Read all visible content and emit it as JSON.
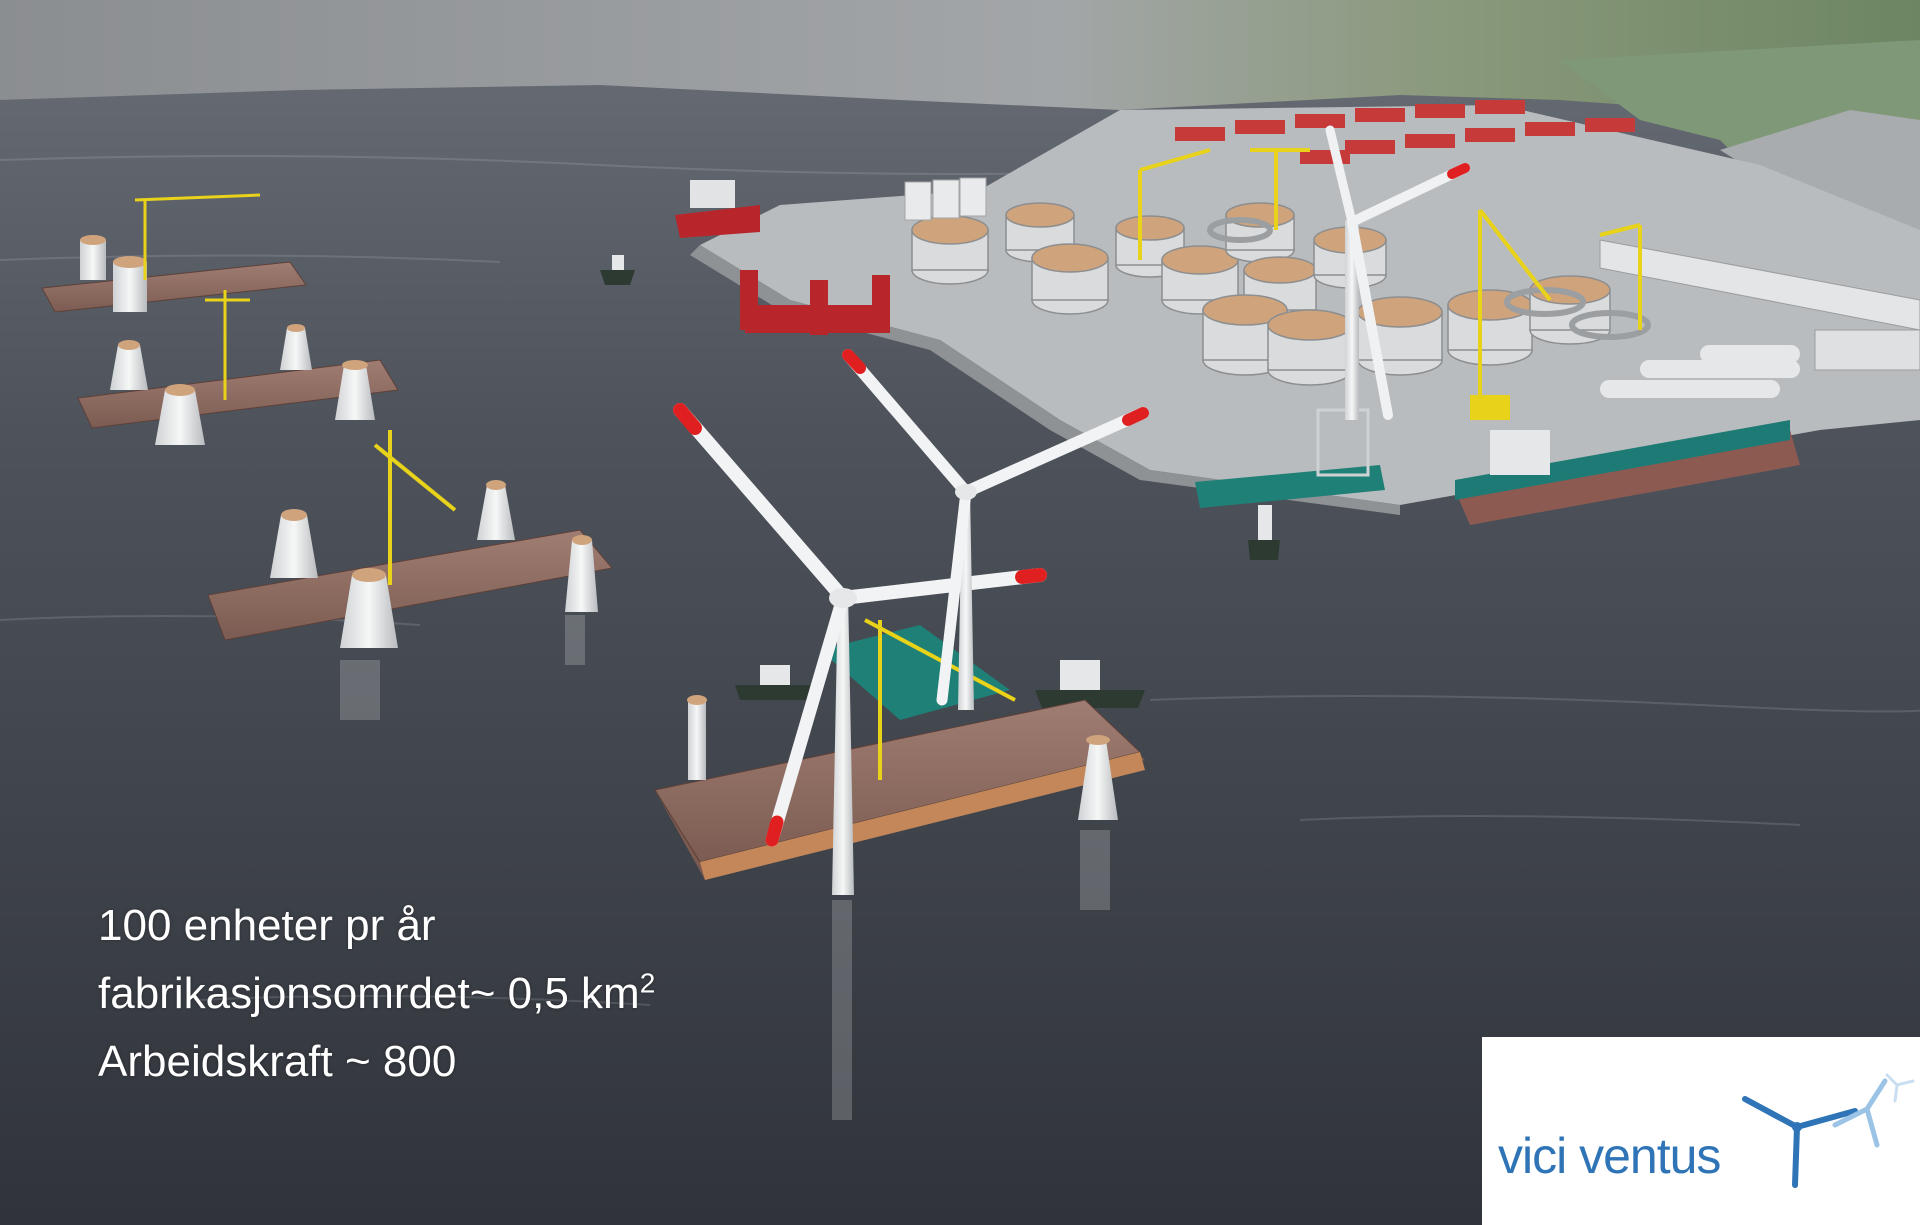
{
  "image": {
    "kind": "3d-render",
    "subject": "floating wind turbine fabrication yard"
  },
  "caption": {
    "line1": "100 enheter pr år",
    "line2_main": "fabrikasjonsomrdet~ 0,5 km",
    "line2_sup": "2",
    "line3": "Arbeidskraft ~ 800"
  },
  "logo": {
    "text": "vici ventus",
    "text_color": "#2f74b6",
    "accent_color": "#9bc3e6"
  },
  "colors": {
    "water": "#3f434b",
    "mountain": "#7d8084",
    "quay": "#b9bcbe",
    "deck": "#8e6a5f",
    "crane": "#e8d21a",
    "blade_tip": "#e02020"
  }
}
